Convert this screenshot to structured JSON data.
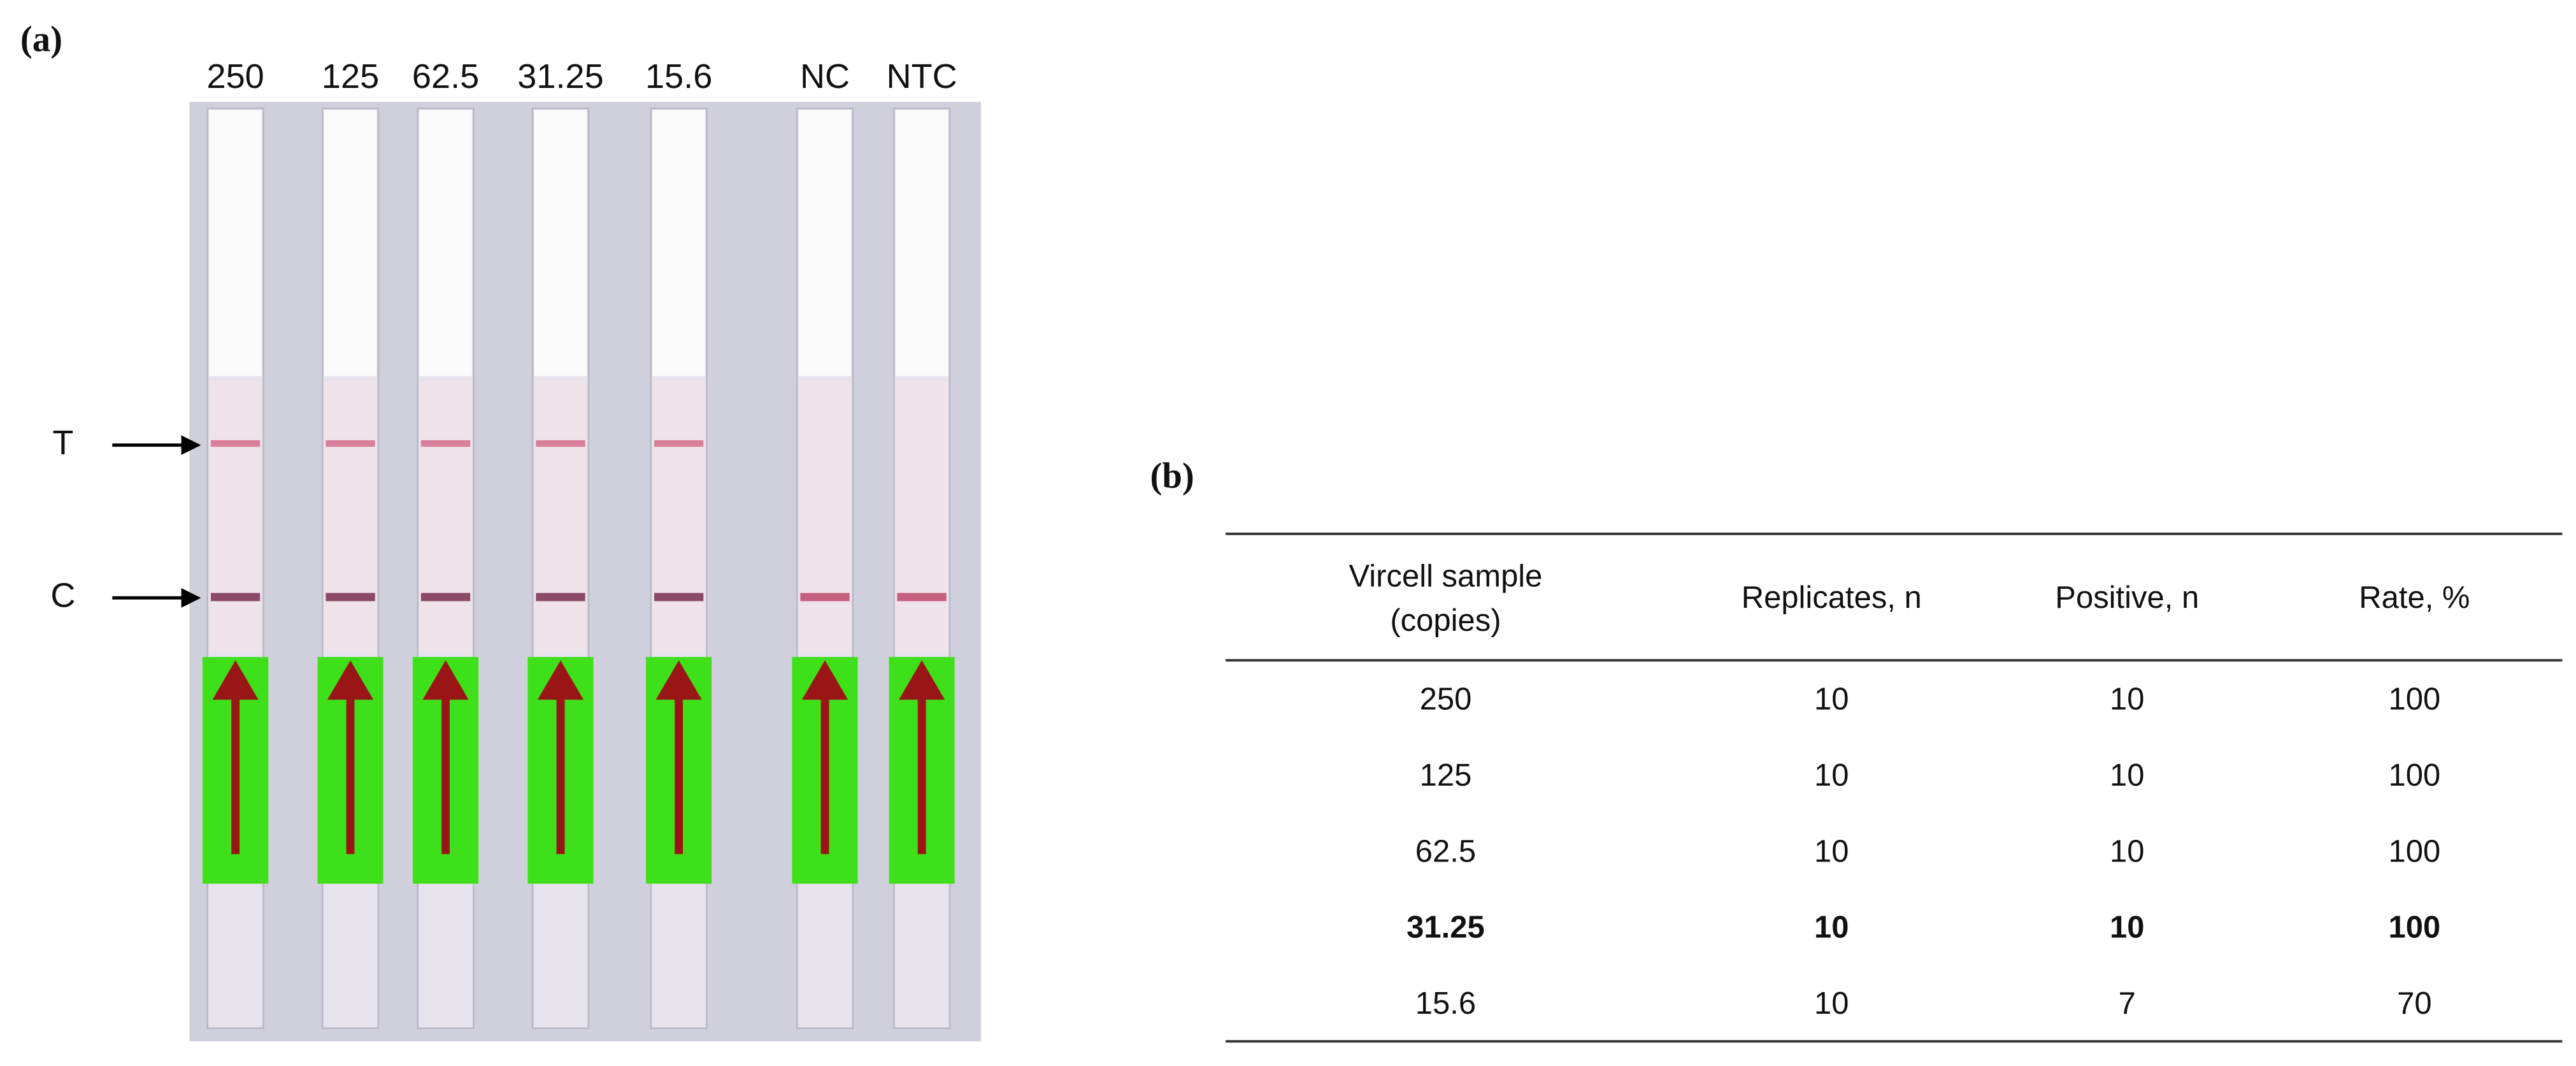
{
  "panel_a": {
    "label": "(a)",
    "lanes": [
      "250",
      "125",
      "62.5",
      "31.25",
      "15.6",
      "NC",
      "NTC"
    ],
    "markers": [
      "T",
      "C"
    ]
  },
  "panel_b": {
    "label": "(b)",
    "header": [
      [
        "Vircell sample",
        "(copies)"
      ],
      "Replicates, n",
      "Positive, n",
      "Rate, %"
    ],
    "rows": [
      [
        "250",
        "10",
        "10",
        "100"
      ],
      [
        "125",
        "10",
        "10",
        "100"
      ],
      [
        "62.5",
        "10",
        "10",
        "100"
      ],
      [
        "31.25",
        "10",
        "10",
        "100"
      ],
      [
        "15.6",
        "10",
        "7",
        "70"
      ]
    ],
    "bold_row": 3
  }
}
